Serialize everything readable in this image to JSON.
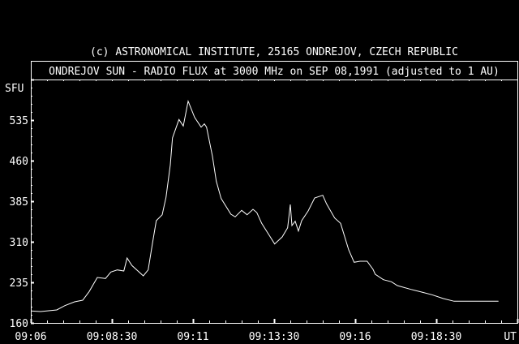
{
  "colors": {
    "background": "#000000",
    "foreground": "#ffffff"
  },
  "chart_data": {
    "type": "line",
    "header": "(c) ASTRONOMICAL INSTITUTE, 25165 ONDREJOV, CZECH REPUBLIC",
    "title": "ONDREJOV SUN - RADIO FLUX at 3000 MHz on SEP 08,1991 (adjusted to 1 AU)",
    "ylabel": "SFU",
    "xlabel": "UT",
    "xlim": [
      "09:06:00",
      "09:21:00"
    ],
    "ylim": [
      160,
      610
    ],
    "x_ticks": [
      "09:06",
      "09:08:30",
      "09:11",
      "09:13:30",
      "09:16",
      "09:18:30"
    ],
    "y_ticks": [
      "160",
      "235",
      "310",
      "385",
      "460",
      "535"
    ],
    "grid": false,
    "series": [
      {
        "x": [
          "09:06:00",
          "09:06:18",
          "09:06:48",
          "09:07:03",
          "09:07:21",
          "09:07:36",
          "09:07:48",
          "09:08:03",
          "09:08:18",
          "09:08:28",
          "09:08:40",
          "09:08:52",
          "09:08:58",
          "09:09:07",
          "09:09:28",
          "09:09:37",
          "09:09:45",
          "09:09:52",
          "09:10:03",
          "09:10:10",
          "09:10:18",
          "09:10:22",
          "09:10:34",
          "09:10:42",
          "09:10:51",
          "09:11:03",
          "09:11:15",
          "09:11:21",
          "09:11:25",
          "09:11:36",
          "09:11:43",
          "09:11:52",
          "09:12:10",
          "09:12:18",
          "09:12:30",
          "09:12:40",
          "09:12:51",
          "09:12:58",
          "09:13:07",
          "09:13:21",
          "09:13:31",
          "09:13:45",
          "09:13:55",
          "09:14:00",
          "09:14:03",
          "09:14:09",
          "09:14:15",
          "09:14:21",
          "09:14:33",
          "09:14:45",
          "09:15:00",
          "09:15:07",
          "09:15:22",
          "09:15:33",
          "09:15:48",
          "09:15:58",
          "09:16:09",
          "09:16:22",
          "09:16:33",
          "09:16:37",
          "09:16:52",
          "09:17:07",
          "09:17:18",
          "09:17:43",
          "09:18:03",
          "09:18:22",
          "09:18:43",
          "09:19:03",
          "09:19:33",
          "09:20:03",
          "09:20:25"
        ],
        "y": [
          182,
          181,
          184,
          192,
          199,
          202,
          218,
          244,
          242,
          254,
          258,
          256,
          280,
          266,
          247,
          258,
          307,
          349,
          360,
          392,
          452,
          502,
          536,
          524,
          570,
          540,
          522,
          528,
          522,
          468,
          422,
          390,
          361,
          356,
          368,
          360,
          370,
          364,
          344,
          322,
          306,
          319,
          336,
          379,
          340,
          348,
          330,
          349,
          367,
          391,
          396,
          380,
          354,
          344,
          295,
          272,
          274,
          274,
          259,
          250,
          240,
          236,
          229,
          222,
          217,
          212,
          205,
          200,
          200,
          200,
          200
        ]
      }
    ]
  }
}
